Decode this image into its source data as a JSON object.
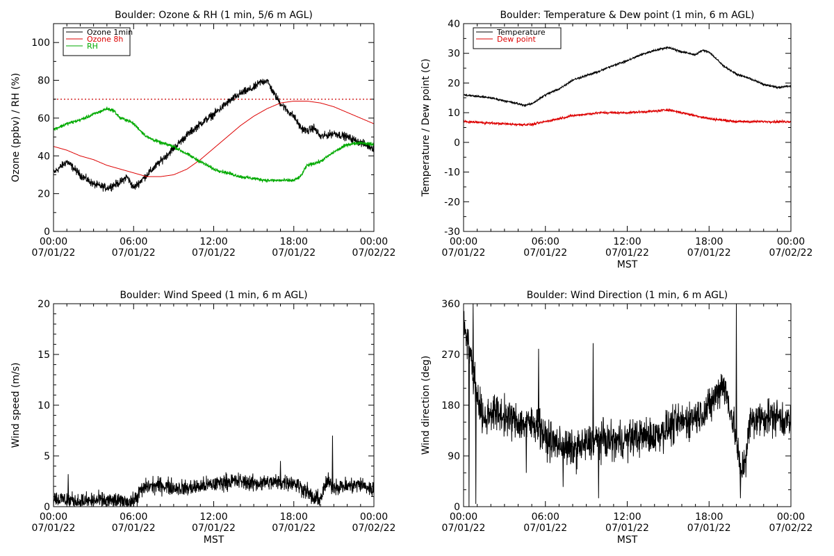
{
  "chart_data": [
    {
      "type": "line",
      "title": "Boulder: Ozone & RH (1 min, 5/6 m AGL)",
      "xlabel": "",
      "ylabel": "Ozone (ppbv) / RH (%)",
      "xlim": [
        "07/01/22 00:00",
        "07/02/22 00:00"
      ],
      "ylim": [
        0,
        110
      ],
      "yticks": [
        0,
        20,
        40,
        60,
        80,
        100
      ],
      "xticks": [
        {
          "time": "00:00",
          "date": "07/01/22"
        },
        {
          "time": "06:00",
          "date": "07/01/22"
        },
        {
          "time": "12:00",
          "date": "07/01/22"
        },
        {
          "time": "18:00",
          "date": "07/01/22"
        },
        {
          "time": "00:00",
          "date": "07/02/22"
        }
      ],
      "legend": "top-left",
      "reference_line": {
        "y": 70,
        "color": "#cc0000",
        "style": "dotted"
      },
      "series": [
        {
          "name": "Ozone 1min",
          "color": "#000000",
          "noise": 1.8,
          "x": [
            0,
            1,
            2,
            3,
            4,
            5,
            5.5,
            6,
            7,
            8,
            9,
            10,
            11,
            12,
            13,
            14,
            15,
            15.5,
            16,
            16.5,
            17,
            17.5,
            18,
            18.5,
            19,
            19.5,
            20,
            20.5,
            21,
            22,
            23,
            24
          ],
          "y": [
            31,
            37,
            30,
            25,
            23,
            26,
            29,
            23,
            30,
            37,
            44,
            51,
            57,
            62,
            68,
            73,
            76,
            79,
            80,
            73,
            68,
            64,
            61,
            55,
            53,
            55,
            50,
            51,
            52,
            50,
            47,
            44
          ]
        },
        {
          "name": "Ozone 8h",
          "color": "#dd0000",
          "noise": 0,
          "x": [
            0,
            1,
            2,
            3,
            4,
            5,
            6,
            7,
            8,
            9,
            10,
            11,
            12,
            13,
            14,
            15,
            16,
            17,
            18,
            19,
            20,
            21,
            22,
            23,
            24
          ],
          "y": [
            45,
            43,
            40,
            38,
            35,
            33,
            31,
            29,
            29,
            30,
            33,
            38,
            44,
            50,
            56,
            61,
            65,
            68,
            69,
            69,
            68,
            66,
            63,
            60,
            57
          ]
        },
        {
          "name": "RH",
          "color": "#00aa00",
          "noise": 0.8,
          "x": [
            0,
            1,
            2,
            3,
            4,
            4.5,
            5,
            5.5,
            6,
            7,
            8,
            9,
            10,
            11,
            12,
            13,
            14,
            15,
            16,
            17,
            18,
            18.5,
            19,
            19.5,
            20,
            21,
            22,
            23,
            24
          ],
          "y": [
            54,
            57,
            59,
            62,
            65,
            64,
            60,
            59,
            57,
            50,
            47,
            45,
            41,
            37,
            33,
            31,
            29,
            28,
            27,
            27,
            27,
            29,
            35,
            36,
            37,
            42,
            46,
            47,
            46
          ]
        }
      ]
    },
    {
      "type": "line",
      "title": "Boulder: Temperature & Dew point (1 min, 6 m AGL)",
      "xlabel": "MST",
      "ylabel": "Temperature / Dew point (C)",
      "xlim": [
        "07/01/22 00:00",
        "07/02/22 00:00"
      ],
      "ylim": [
        -30,
        40
      ],
      "yticks": [
        -30,
        -20,
        -10,
        0,
        10,
        20,
        30,
        40
      ],
      "xticks": [
        {
          "time": "00:00",
          "date": "07/01/22"
        },
        {
          "time": "06:00",
          "date": "07/01/22"
        },
        {
          "time": "12:00",
          "date": "07/01/22"
        },
        {
          "time": "18:00",
          "date": "07/01/22"
        },
        {
          "time": "00:00",
          "date": "07/02/22"
        }
      ],
      "legend": "top-left",
      "series": [
        {
          "name": "Temperature",
          "color": "#000000",
          "noise": 0.3,
          "x": [
            0,
            1,
            2,
            3,
            4,
            4.5,
            5,
            6,
            7,
            8,
            9,
            10,
            11,
            12,
            13,
            14,
            15,
            16,
            17,
            17.5,
            18,
            19,
            20,
            21,
            22,
            23,
            24
          ],
          "y": [
            16,
            15.5,
            15,
            14,
            13,
            12.5,
            13,
            16,
            18,
            21,
            22.5,
            24,
            26,
            27.5,
            29.5,
            31,
            32,
            30.5,
            29.5,
            31,
            30.5,
            26,
            23,
            21.5,
            19.5,
            18.5,
            19
          ]
        },
        {
          "name": "Dew point",
          "color": "#dd0000",
          "noise": 0.35,
          "x": [
            0,
            2,
            4,
            5,
            6,
            7,
            8,
            10,
            12,
            14,
            15,
            16,
            17,
            18,
            19,
            20,
            22,
            24
          ],
          "y": [
            7,
            6.5,
            6,
            6,
            7,
            8,
            9,
            10,
            10,
            10.5,
            11,
            10,
            9,
            8,
            7.5,
            7,
            7,
            7
          ]
        }
      ]
    },
    {
      "type": "line",
      "title": "Boulder: Wind Speed (1 min, 6 m AGL)",
      "xlabel": "MST",
      "ylabel": "Wind speed (m/s)",
      "xlim": [
        "07/01/22 00:00",
        "07/02/22 00:00"
      ],
      "ylim": [
        0,
        20
      ],
      "yticks": [
        0,
        5,
        10,
        15,
        20
      ],
      "xticks": [
        {
          "time": "00:00",
          "date": "07/01/22"
        },
        {
          "time": "06:00",
          "date": "07/01/22"
        },
        {
          "time": "12:00",
          "date": "07/01/22"
        },
        {
          "time": "18:00",
          "date": "07/01/22"
        },
        {
          "time": "00:00",
          "date": "07/02/22"
        }
      ],
      "legend": "none",
      "series": [
        {
          "color": "#000000",
          "noise": 0.7,
          "x": [
            0,
            1,
            2,
            3,
            4,
            5,
            6,
            6.5,
            7,
            8,
            9,
            10,
            11,
            12,
            13,
            14,
            15,
            16,
            17,
            18,
            19,
            19.5,
            20,
            20.5,
            21,
            22,
            23,
            24
          ],
          "y": [
            0.8,
            0.7,
            0.5,
            0.6,
            0.6,
            0.5,
            0.5,
            1.5,
            2,
            2.1,
            1.9,
            1.8,
            2,
            2.2,
            2.5,
            2.5,
            2.3,
            2.4,
            2.4,
            2.4,
            1.5,
            0.7,
            0.8,
            2.5,
            2,
            2,
            2.2,
            1.6
          ]
        }
      ],
      "spikes": [
        {
          "x": 1.1,
          "y": 3.2
        },
        {
          "x": 20.9,
          "y": 7.0
        },
        {
          "x": 17.0,
          "y": 4.5
        }
      ]
    },
    {
      "type": "line",
      "title": "Boulder: Wind Direction (1 min, 6 m AGL)",
      "xlabel": "MST",
      "ylabel": "Wind direction (deg)",
      "xlim": [
        "07/01/22 00:00",
        "07/02/22 00:00"
      ],
      "ylim": [
        0,
        360
      ],
      "yticks": [
        0,
        90,
        180,
        270,
        360
      ],
      "xticks": [
        {
          "time": "00:00",
          "date": "07/01/22"
        },
        {
          "time": "06:00",
          "date": "07/01/22"
        },
        {
          "time": "12:00",
          "date": "07/01/22"
        },
        {
          "time": "18:00",
          "date": "07/01/22"
        },
        {
          "time": "00:00",
          "date": "07/02/22"
        }
      ],
      "legend": "none",
      "series": [
        {
          "color": "#000000",
          "noise": 28,
          "x": [
            0,
            0.3,
            0.6,
            1,
            1.5,
            2,
            3,
            4,
            5,
            5.5,
            6,
            7,
            8,
            9,
            10,
            11,
            12,
            13,
            14,
            15,
            16,
            17,
            18,
            19,
            19.5,
            20,
            20.3,
            20.7,
            21,
            22,
            23,
            24
          ],
          "y": [
            330,
            300,
            250,
            200,
            150,
            170,
            160,
            150,
            145,
            150,
            120,
            110,
            100,
            110,
            120,
            115,
            120,
            125,
            125,
            140,
            150,
            160,
            175,
            220,
            180,
            120,
            60,
            90,
            150,
            160,
            160,
            150
          ]
        }
      ],
      "spikes": [
        {
          "x": 0.4,
          "y": 0
        },
        {
          "x": 0.7,
          "y": 360
        },
        {
          "x": 0.9,
          "y": 5
        },
        {
          "x": 5.5,
          "y": 280
        },
        {
          "x": 9.5,
          "y": 290
        },
        {
          "x": 9.9,
          "y": 15
        },
        {
          "x": 20.0,
          "y": 355
        },
        {
          "x": 20.3,
          "y": 15
        },
        {
          "x": 4.6,
          "y": 60
        },
        {
          "x": 7.3,
          "y": 35
        }
      ]
    }
  ]
}
